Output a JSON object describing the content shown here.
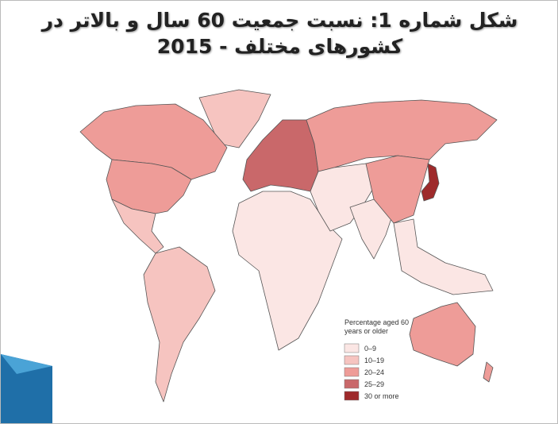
{
  "title": {
    "lines": [
      "شکل شماره 1: نسبت جمعیت 60 سال و بالاتر در",
      "کشورهای مختلف - 2015"
    ]
  },
  "legend": {
    "title": "Percentage aged 60 years or older",
    "items": [
      {
        "label": "0–9",
        "color": "#fbe6e4"
      },
      {
        "label": "10–19",
        "color": "#f6c4c0"
      },
      {
        "label": "20–24",
        "color": "#ee9c98"
      },
      {
        "label": "25–29",
        "color": "#c9686a"
      },
      {
        "label": "30 or more",
        "color": "#9e2a2b"
      }
    ]
  }
}
